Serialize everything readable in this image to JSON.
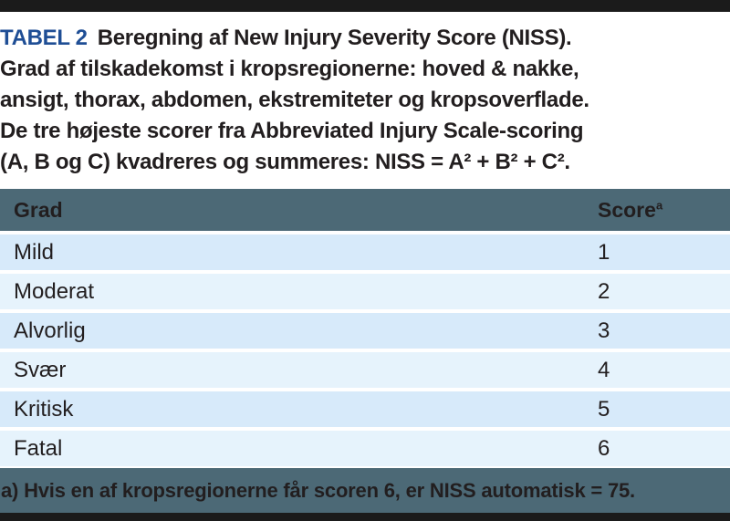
{
  "colors": {
    "accent_blue": "#1f4e95",
    "slate_band": "#4c6976",
    "row_dark_blue": "#d7eafa",
    "row_light_blue": "#e6f3fc",
    "bar_black": "#1b1b1b",
    "text": "#221e1f"
  },
  "caption": {
    "label": "TABEL 2",
    "line1": "Beregning af New Injury Severity Score (NISS).",
    "line2": "Grad af tilskadekomst i kropsregionerne: hoved & nakke,",
    "line3": "ansigt, thorax, abdomen, ekstremiteter og kropsoverflade.",
    "line4": "De tre højeste scorer fra Abbreviated Injury Scale-scoring",
    "line5": "(A, B og C) kvadreres og summeres: NISS = A² + B² + C²."
  },
  "table": {
    "columns": [
      {
        "label": "Grad",
        "sup": ""
      },
      {
        "label": "Score",
        "sup": "a"
      }
    ],
    "rows": [
      {
        "grad": "Mild",
        "score": "1"
      },
      {
        "grad": "Moderat",
        "score": "2"
      },
      {
        "grad": "Alvorlig",
        "score": "3"
      },
      {
        "grad": "Svær",
        "score": "4"
      },
      {
        "grad": "Kritisk",
        "score": "5"
      },
      {
        "grad": "Fatal",
        "score": "6"
      }
    ]
  },
  "footnote": "a) Hvis en af kropsregionerne får scoren 6, er NISS automatisk = 75."
}
